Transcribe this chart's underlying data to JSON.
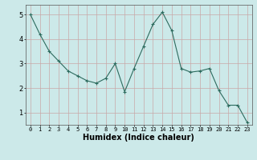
{
  "x": [
    0,
    1,
    2,
    3,
    4,
    5,
    6,
    7,
    8,
    9,
    10,
    11,
    12,
    13,
    14,
    15,
    16,
    17,
    18,
    19,
    20,
    21,
    22,
    23
  ],
  "y": [
    5.0,
    4.2,
    3.5,
    3.1,
    2.7,
    2.5,
    2.3,
    2.2,
    2.4,
    3.0,
    1.85,
    2.8,
    3.7,
    4.6,
    5.1,
    4.35,
    2.8,
    2.65,
    2.7,
    2.8,
    1.9,
    1.3,
    1.3,
    0.6
  ],
  "xlabel": "Humidex (Indice chaleur)",
  "ylim": [
    0.5,
    5.4
  ],
  "xlim": [
    -0.5,
    23.5
  ],
  "yticks": [
    1,
    2,
    3,
    4,
    5
  ],
  "xticks": [
    0,
    1,
    2,
    3,
    4,
    5,
    6,
    7,
    8,
    9,
    10,
    11,
    12,
    13,
    14,
    15,
    16,
    17,
    18,
    19,
    20,
    21,
    22,
    23
  ],
  "line_color": "#2d6b5e",
  "marker": "+",
  "bg_color": "#cce9e9",
  "grid_color": "#c8a8a8",
  "xlabel_fontsize": 7,
  "tick_fontsize": 5,
  "ytick_fontsize": 6
}
